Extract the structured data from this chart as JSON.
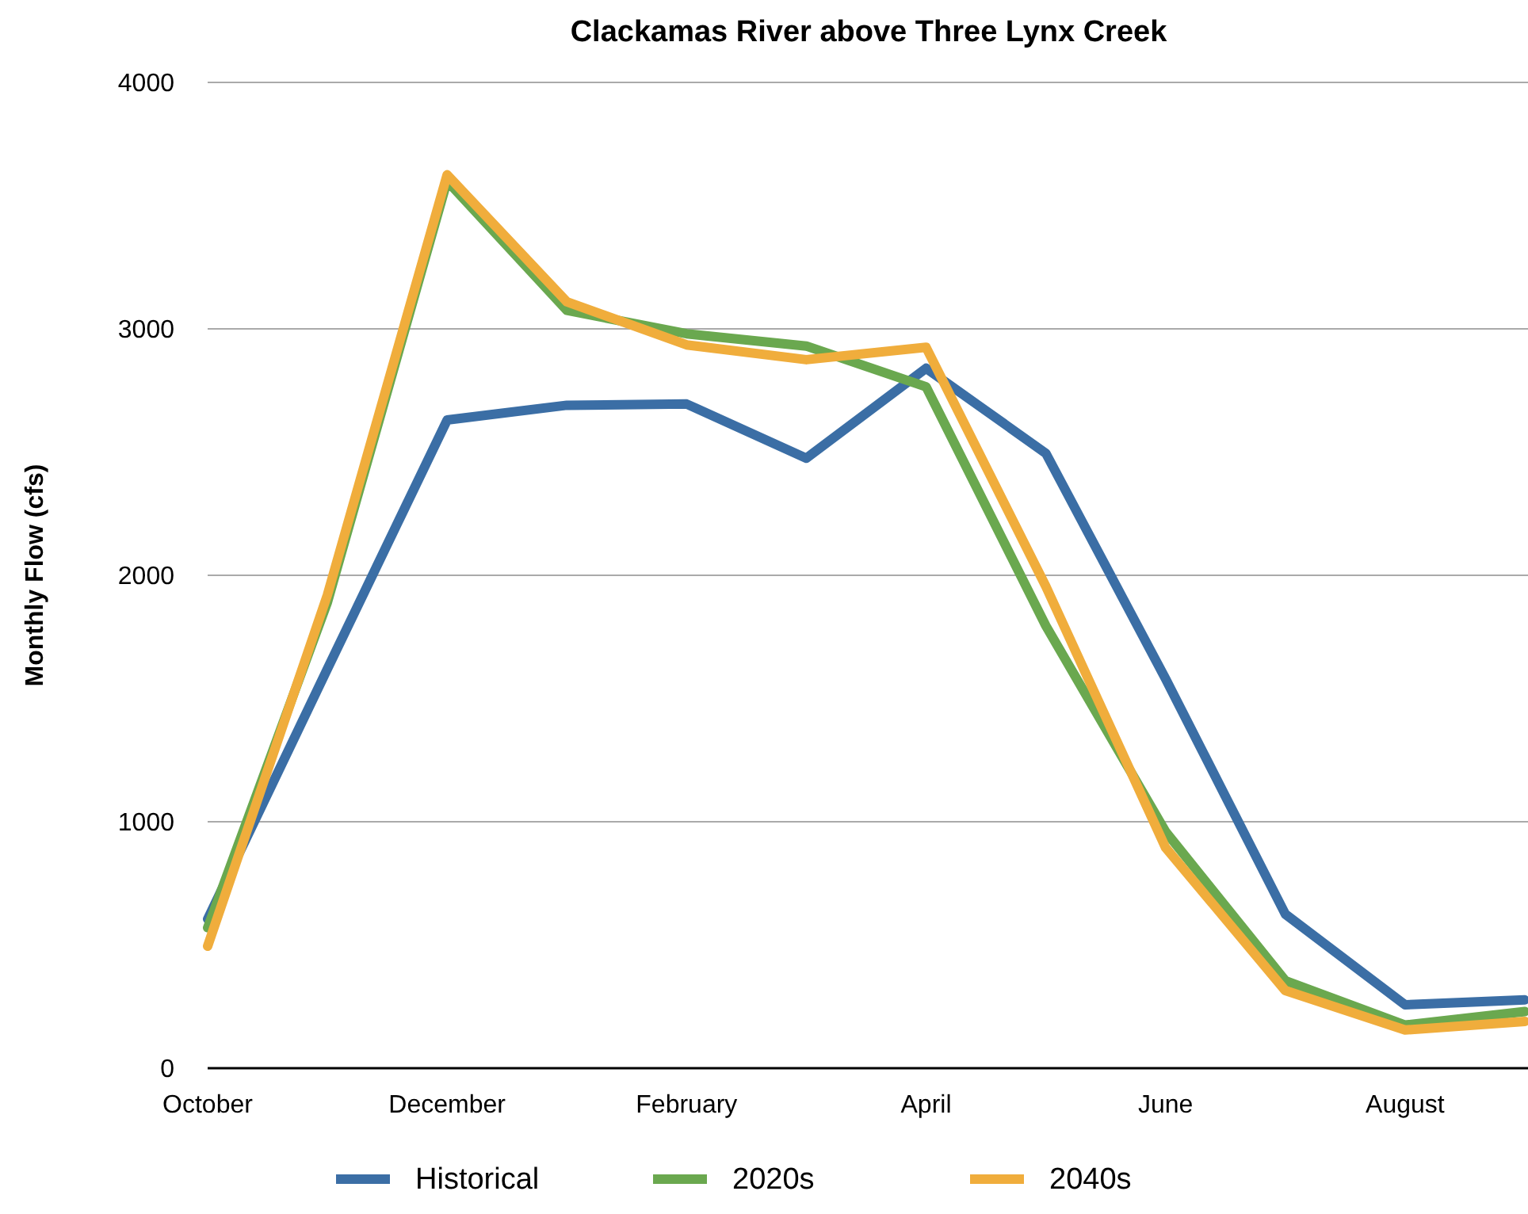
{
  "chart_data": {
    "type": "line",
    "title": "Clackamas River above Three Lynx Creek",
    "ylabel": "Monthly Flow (cfs)",
    "categories": [
      "October",
      null,
      "December",
      null,
      "February",
      null,
      "April",
      null,
      "June",
      null,
      "August",
      null
    ],
    "series": [
      {
        "name": "Historical",
        "color": "#3b6ea5",
        "values": [
          605,
          1620,
          2630,
          2690,
          2695,
          2475,
          2840,
          2495,
          1580,
          625,
          257,
          277
        ]
      },
      {
        "name": "2020s",
        "color": "#6aa84f",
        "values": [
          570,
          1890,
          3600,
          3075,
          2980,
          2930,
          2765,
          1795,
          960,
          355,
          175,
          230
        ]
      },
      {
        "name": "2040s",
        "color": "#f0ad3c",
        "values": [
          495,
          1920,
          3625,
          3110,
          2935,
          2875,
          2925,
          1955,
          895,
          315,
          155,
          190
        ]
      }
    ],
    "ylim": [
      0,
      4000
    ],
    "yticks": [
      0,
      1000,
      2000,
      3000,
      4000
    ],
    "grid": "y",
    "legend": "bottom",
    "line_style": "solid"
  }
}
